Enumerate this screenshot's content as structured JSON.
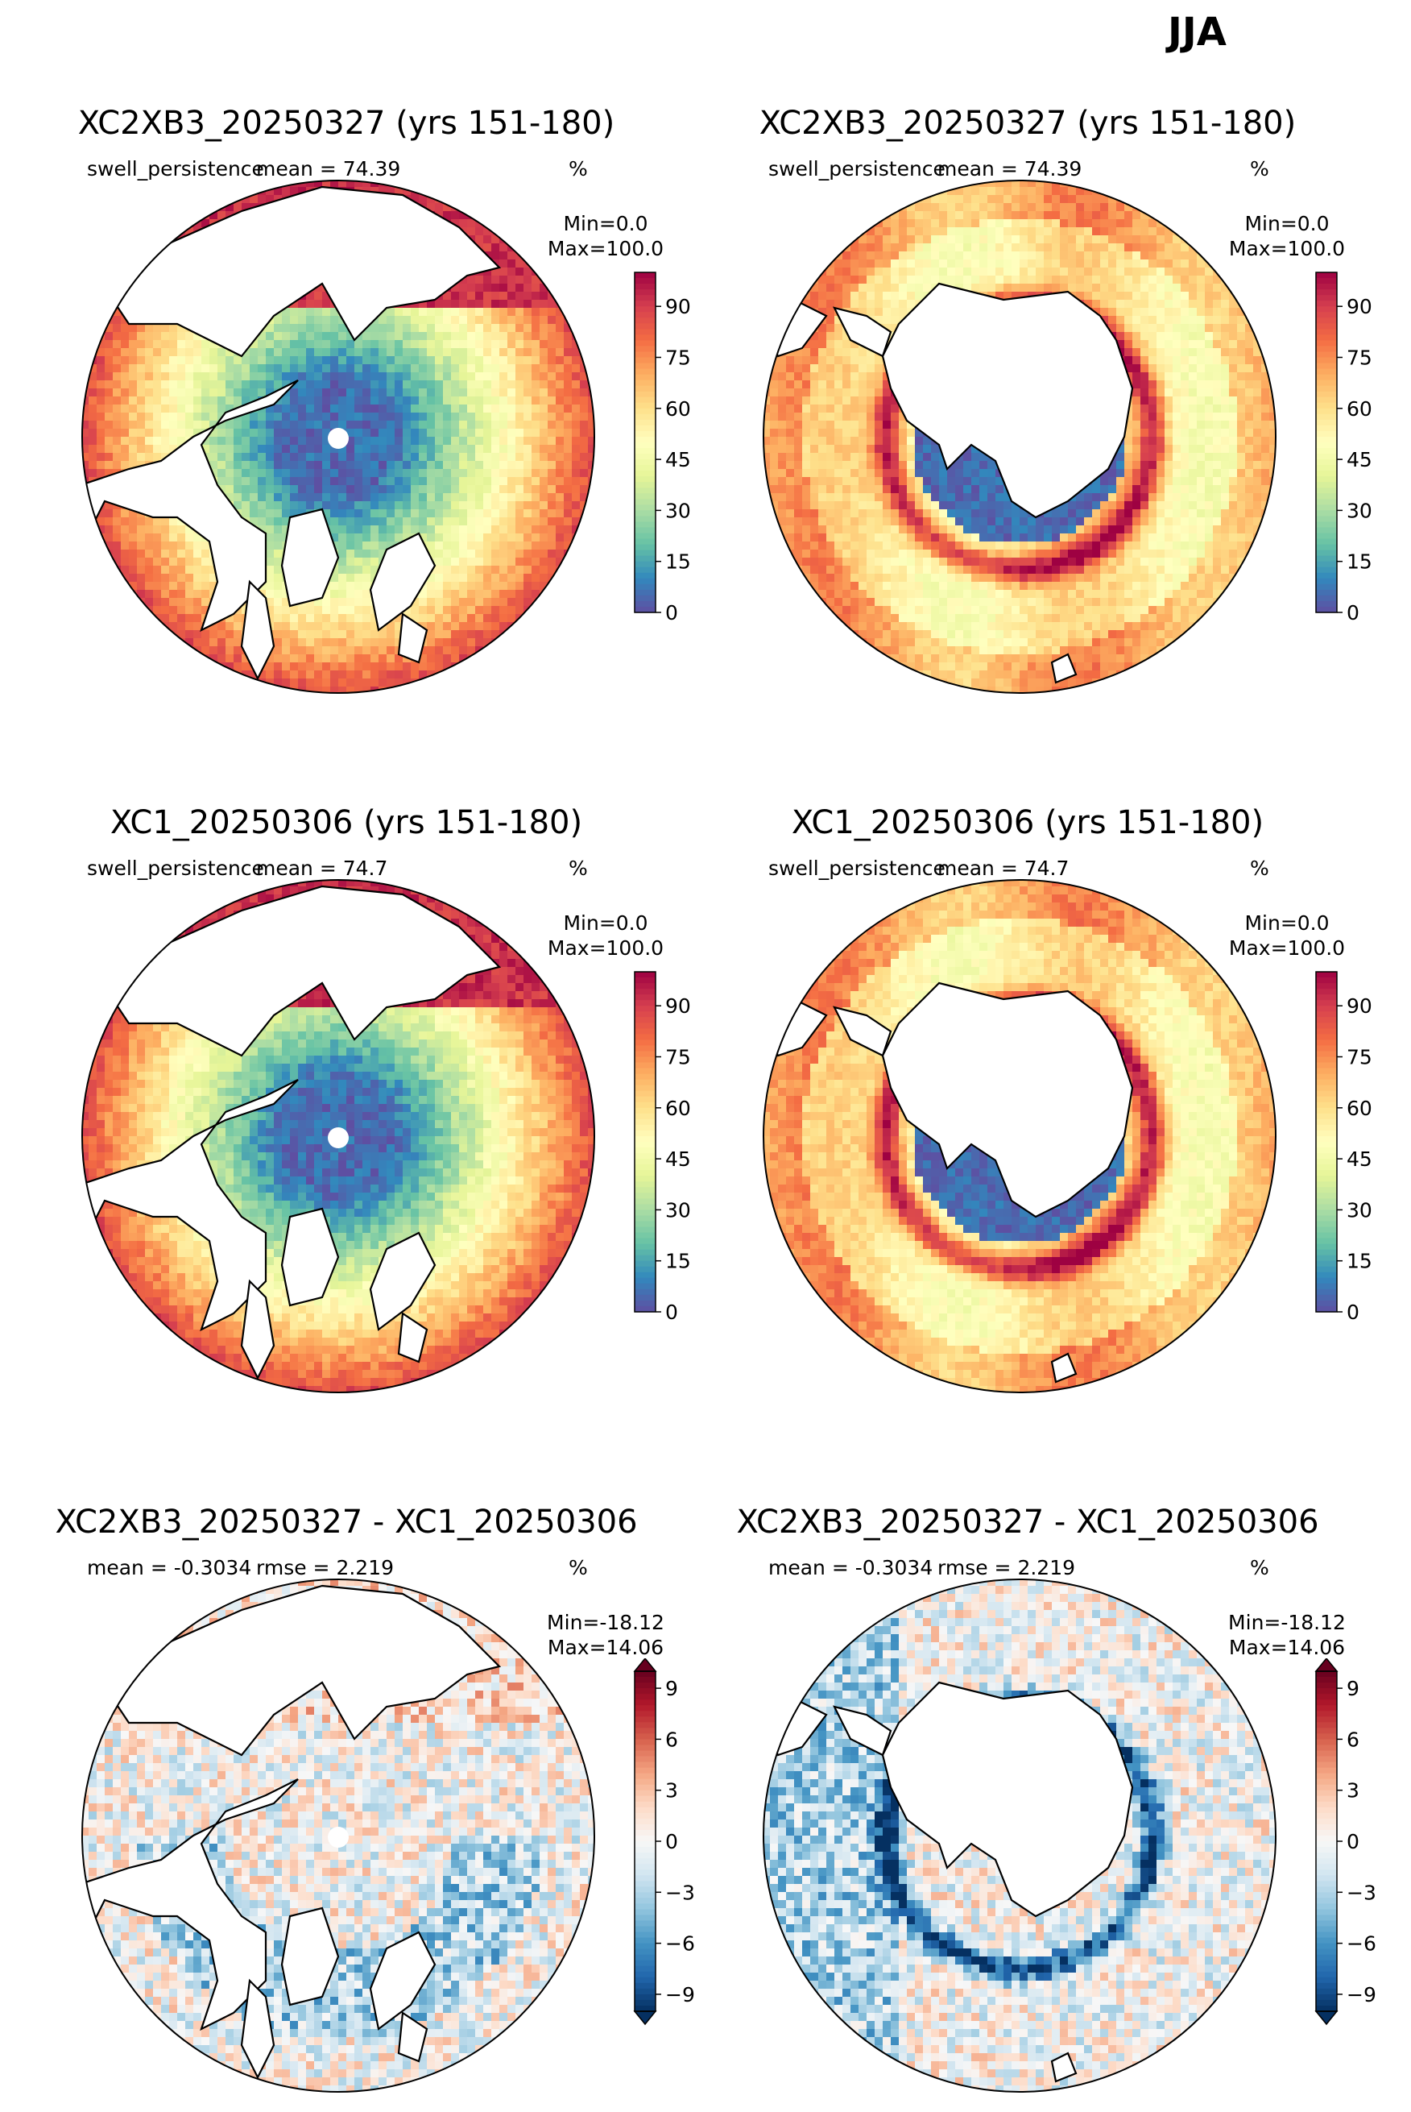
{
  "figure": {
    "title": "JJA"
  },
  "colors": {
    "spectral_r": [
      "#5e4fa2",
      "#3288bd",
      "#66c2a5",
      "#abdda4",
      "#e6f598",
      "#ffffbf",
      "#fee08b",
      "#fdae61",
      "#f46d43",
      "#d53e4f",
      "#9e0142"
    ],
    "rdbu_r": [
      "#053061",
      "#2166ac",
      "#4393c3",
      "#92c5de",
      "#d1e5f0",
      "#f7f7f7",
      "#fddbc7",
      "#f4a582",
      "#d6604d",
      "#b2182b",
      "#67001f"
    ],
    "land": "#ffffff",
    "coast": "#000000"
  },
  "panels": [
    {
      "title": "XC2XB3_20250327 (yrs 151-180)",
      "left_label": "swell_persistence",
      "center_label": "mean = 74.39",
      "right_label": "%",
      "min_label": "Min=0.0",
      "max_label": "Max=100.0",
      "hemisphere": "north",
      "kind": "field",
      "colormap": "spectral_r"
    },
    {
      "title": "XC2XB3_20250327 (yrs 151-180)",
      "left_label": "swell_persistence",
      "center_label": "mean = 74.39",
      "right_label": "%",
      "min_label": "Min=0.0",
      "max_label": "Max=100.0",
      "hemisphere": "south",
      "kind": "field",
      "colormap": "spectral_r"
    },
    {
      "title": "XC1_20250306 (yrs 151-180)",
      "left_label": "swell_persistence",
      "center_label": "mean = 74.7",
      "right_label": "%",
      "min_label": "Min=0.0",
      "max_label": "Max=100.0",
      "hemisphere": "north",
      "kind": "field",
      "colormap": "spectral_r"
    },
    {
      "title": "XC1_20250306 (yrs 151-180)",
      "left_label": "swell_persistence",
      "center_label": "mean = 74.7",
      "right_label": "%",
      "min_label": "Min=0.0",
      "max_label": "Max=100.0",
      "hemisphere": "south",
      "kind": "field",
      "colormap": "spectral_r"
    },
    {
      "title": "XC2XB3_20250327 - XC1_20250306",
      "left_label": "mean = -0.3034",
      "center_label": "rmse = 2.219",
      "right_label": "%",
      "min_label": "Min=-18.12",
      "max_label": "Max=14.06",
      "hemisphere": "north",
      "kind": "diff",
      "colormap": "rdbu_r"
    },
    {
      "title": "XC2XB3_20250327 - XC1_20250306",
      "left_label": "mean = -0.3034",
      "center_label": "rmse = 2.219",
      "right_label": "%",
      "min_label": "Min=-18.12",
      "max_label": "Max=14.06",
      "hemisphere": "south",
      "kind": "diff",
      "colormap": "rdbu_r"
    }
  ],
  "chart_data": [
    {
      "type": "heatmap",
      "title": "XC2XB3_20250327 (yrs 151-180)",
      "variable": "swell_persistence",
      "units": "%",
      "mean": 74.39,
      "min": 0.0,
      "max": 100.0,
      "projection": "north polar stereographic",
      "colorbar": {
        "ticks": [
          0,
          15,
          30,
          45,
          60,
          75,
          90
        ],
        "range": [
          0,
          100
        ],
        "cmap": "spectral_r",
        "extend": "neither"
      }
    },
    {
      "type": "heatmap",
      "title": "XC2XB3_20250327 (yrs 151-180)",
      "variable": "swell_persistence",
      "units": "%",
      "mean": 74.39,
      "min": 0.0,
      "max": 100.0,
      "projection": "south polar stereographic",
      "colorbar": {
        "ticks": [
          0,
          15,
          30,
          45,
          60,
          75,
          90
        ],
        "range": [
          0,
          100
        ],
        "cmap": "spectral_r",
        "extend": "neither"
      }
    },
    {
      "type": "heatmap",
      "title": "XC1_20250306 (yrs 151-180)",
      "variable": "swell_persistence",
      "units": "%",
      "mean": 74.7,
      "min": 0.0,
      "max": 100.0,
      "projection": "north polar stereographic",
      "colorbar": {
        "ticks": [
          0,
          15,
          30,
          45,
          60,
          75,
          90
        ],
        "range": [
          0,
          100
        ],
        "cmap": "spectral_r",
        "extend": "neither"
      }
    },
    {
      "type": "heatmap",
      "title": "XC1_20250306 (yrs 151-180)",
      "variable": "swell_persistence",
      "units": "%",
      "mean": 74.7,
      "min": 0.0,
      "max": 100.0,
      "projection": "south polar stereographic",
      "colorbar": {
        "ticks": [
          0,
          15,
          30,
          45,
          60,
          75,
          90
        ],
        "range": [
          0,
          100
        ],
        "cmap": "spectral_r",
        "extend": "neither"
      }
    },
    {
      "type": "heatmap",
      "title": "XC2XB3_20250327 - XC1_20250306",
      "units": "%",
      "mean": -0.3034,
      "rmse": 2.219,
      "min": -18.12,
      "max": 14.06,
      "projection": "north polar stereographic",
      "colorbar": {
        "ticks": [
          -9,
          -6,
          -3,
          0,
          3,
          6,
          9
        ],
        "range": [
          -10,
          10
        ],
        "cmap": "rdbu_r",
        "extend": "both"
      }
    },
    {
      "type": "heatmap",
      "title": "XC2XB3_20250327 - XC1_20250306",
      "units": "%",
      "mean": -0.3034,
      "rmse": 2.219,
      "min": -18.12,
      "max": 14.06,
      "projection": "south polar stereographic",
      "colorbar": {
        "ticks": [
          -9,
          -6,
          -3,
          0,
          3,
          6,
          9
        ],
        "range": [
          -10,
          10
        ],
        "cmap": "rdbu_r",
        "extend": "both"
      }
    }
  ]
}
